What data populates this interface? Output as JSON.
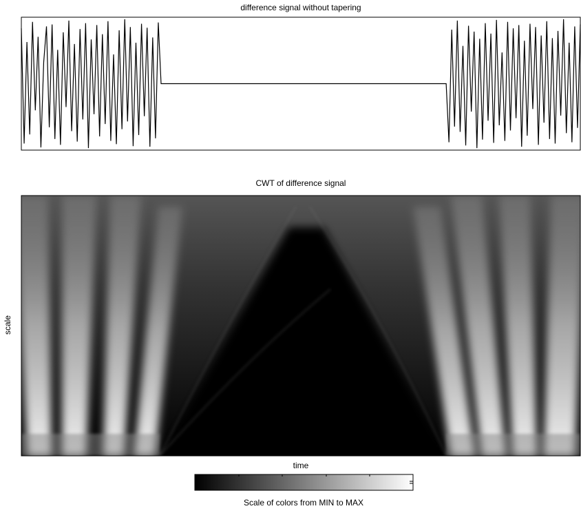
{
  "chart_data": [
    {
      "type": "line",
      "title": "difference signal without tapering",
      "color": "#000000",
      "xlim": [
        0,
        1000
      ],
      "ylim": [
        -1,
        1
      ],
      "x": [
        0,
        5,
        10,
        15,
        20,
        25,
        30,
        35,
        40,
        45,
        50,
        55,
        60,
        65,
        70,
        75,
        80,
        85,
        90,
        95,
        100,
        105,
        110,
        115,
        120,
        125,
        130,
        135,
        140,
        145,
        150,
        155,
        160,
        165,
        170,
        175,
        180,
        185,
        190,
        195,
        200,
        205,
        210,
        215,
        220,
        225,
        230,
        235,
        240,
        245,
        250,
        760,
        765,
        770,
        775,
        780,
        785,
        790,
        795,
        800,
        805,
        810,
        815,
        820,
        825,
        830,
        835,
        840,
        845,
        850,
        855,
        860,
        865,
        870,
        875,
        880,
        885,
        890,
        895,
        900,
        905,
        910,
        915,
        920,
        925,
        930,
        935,
        940,
        945,
        950,
        955,
        960,
        965,
        970,
        975,
        980,
        985,
        990,
        995,
        1000
      ],
      "values": [
        0.85,
        -0.92,
        0.64,
        -0.78,
        0.95,
        -0.41,
        0.72,
        -0.98,
        0.33,
        0.88,
        -0.67,
        0.91,
        -0.85,
        0.52,
        -0.94,
        0.79,
        -0.36,
        0.97,
        -0.73,
        0.61,
        -0.89,
        0.84,
        -0.55,
        0.93,
        -0.99,
        0.68,
        -0.47,
        0.9,
        -0.81,
        0.76,
        -0.62,
        0.96,
        -0.88,
        0.45,
        -0.93,
        0.82,
        -0.7,
        0.99,
        -0.58,
        0.87,
        -0.96,
        0.63,
        -0.79,
        0.92,
        -0.5,
        0.86,
        -0.97,
        0.71,
        -0.84,
        0.94,
        0,
        0,
        -0.9,
        0.83,
        -0.66,
        0.97,
        -0.74,
        0.58,
        -0.95,
        0.89,
        -0.43,
        0.8,
        -0.99,
        0.69,
        -0.86,
        0.93,
        -0.57,
        0.77,
        -0.91,
        0.98,
        -0.64,
        0.48,
        -0.88,
        0.95,
        -0.72,
        0.85,
        -0.53,
        0.9,
        -0.97,
        0.66,
        -0.8,
        0.92,
        -0.39,
        0.87,
        -0.94,
        0.74,
        -0.6,
        0.96,
        -0.85,
        0.7,
        -0.92,
        0.81,
        -0.49,
        0.99,
        -0.76,
        0.63,
        -0.9,
        0.88,
        -0.68,
        0.91
      ]
    },
    {
      "type": "image",
      "title": "CWT of difference signal",
      "xlabel": "time",
      "ylabel": "scale",
      "colorbar_label": "Scale of colors from MIN to MAX"
    }
  ]
}
